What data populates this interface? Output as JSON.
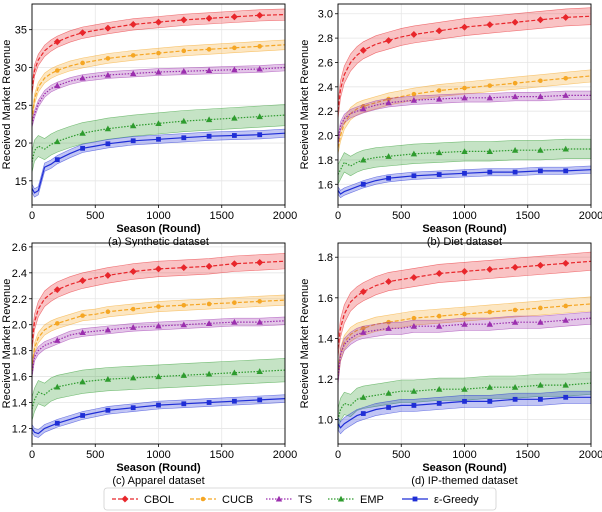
{
  "chart_data": [
    {
      "type": "line",
      "caption": "(a) Synthetic dataset",
      "xlabel": "Season (Round)",
      "ylabel": "Received Market Revenue",
      "xlim": [
        0,
        2000
      ],
      "ylim": [
        11.8,
        38.4
      ],
      "xticks": [
        0,
        500,
        1000,
        1500,
        2000
      ],
      "yticks": [
        15,
        20,
        25,
        30,
        35
      ],
      "x": [
        0,
        20,
        50,
        100,
        150,
        200,
        300,
        400,
        500,
        600,
        800,
        1000,
        1200,
        1400,
        1600,
        1800,
        2000
      ],
      "series": [
        {
          "name": "CBOL",
          "values": [
            27.0,
            29.6,
            31.0,
            32.2,
            32.9,
            33.4,
            34.1,
            34.6,
            34.9,
            35.2,
            35.7,
            36.0,
            36.3,
            36.5,
            36.7,
            36.9,
            37.0
          ],
          "band": 0.75
        },
        {
          "name": "CUCB",
          "values": [
            23.0,
            25.8,
            27.4,
            28.6,
            29.2,
            29.6,
            30.2,
            30.6,
            30.9,
            31.2,
            31.6,
            31.9,
            32.2,
            32.4,
            32.6,
            32.8,
            33.0
          ],
          "band": 0.65
        },
        {
          "name": "TS",
          "values": [
            22.5,
            23.8,
            25.2,
            26.5,
            27.2,
            27.6,
            28.2,
            28.6,
            28.8,
            29.0,
            29.2,
            29.4,
            29.5,
            29.6,
            29.7,
            29.8,
            30.0
          ],
          "band": 0.45
        },
        {
          "name": "EMP",
          "values": [
            17.5,
            19.0,
            19.6,
            19.2,
            19.8,
            20.2,
            20.8,
            21.3,
            21.6,
            21.9,
            22.3,
            22.6,
            22.9,
            23.1,
            23.3,
            23.5,
            23.7
          ],
          "band": 1.4
        },
        {
          "name": "ε-Greedy",
          "values": [
            14.0,
            13.4,
            13.7,
            16.8,
            17.2,
            17.8,
            18.6,
            19.3,
            19.6,
            19.9,
            20.3,
            20.5,
            20.7,
            20.9,
            21.0,
            21.1,
            21.3
          ],
          "band": 0.55
        }
      ]
    },
    {
      "type": "line",
      "caption": "(b) Diet dataset",
      "xlabel": "Season (Round)",
      "ylabel": "Received Market Revenue",
      "xlim": [
        0,
        2000
      ],
      "ylim": [
        1.43,
        3.08
      ],
      "xticks": [
        0,
        500,
        1000,
        1500,
        2000
      ],
      "yticks": [
        1.6,
        1.8,
        2.0,
        2.2,
        2.4,
        2.6,
        2.8,
        3.0
      ],
      "x": [
        0,
        20,
        50,
        100,
        150,
        200,
        300,
        400,
        500,
        600,
        800,
        1000,
        1200,
        1400,
        1600,
        1800,
        2000
      ],
      "series": [
        {
          "name": "CBOL",
          "values": [
            2.2,
            2.38,
            2.5,
            2.6,
            2.66,
            2.7,
            2.75,
            2.78,
            2.81,
            2.83,
            2.86,
            2.89,
            2.91,
            2.93,
            2.95,
            2.97,
            2.98
          ],
          "band": 0.07
        },
        {
          "name": "CUCB",
          "values": [
            1.9,
            2.0,
            2.1,
            2.18,
            2.22,
            2.24,
            2.27,
            2.3,
            2.32,
            2.34,
            2.37,
            2.39,
            2.41,
            2.43,
            2.45,
            2.47,
            2.49
          ],
          "band": 0.05
        },
        {
          "name": "TS",
          "values": [
            1.95,
            2.08,
            2.14,
            2.18,
            2.2,
            2.22,
            2.25,
            2.27,
            2.28,
            2.29,
            2.3,
            2.31,
            2.31,
            2.32,
            2.32,
            2.33,
            2.33
          ],
          "band": 0.035
        },
        {
          "name": "EMP",
          "values": [
            1.68,
            1.72,
            1.78,
            1.75,
            1.78,
            1.8,
            1.82,
            1.83,
            1.84,
            1.85,
            1.86,
            1.87,
            1.87,
            1.88,
            1.88,
            1.89,
            1.89
          ],
          "band": 0.08
        },
        {
          "name": "ε-Greedy",
          "values": [
            1.55,
            1.52,
            1.54,
            1.56,
            1.58,
            1.6,
            1.63,
            1.65,
            1.66,
            1.67,
            1.68,
            1.69,
            1.7,
            1.7,
            1.71,
            1.71,
            1.72
          ],
          "band": 0.03
        }
      ]
    },
    {
      "type": "line",
      "caption": "(c) Apparel dataset",
      "xlabel": "Season (Round)",
      "ylabel": "Received Market Revenue",
      "xlim": [
        0,
        2000
      ],
      "ylim": [
        1.08,
        2.63
      ],
      "xticks": [
        0,
        500,
        1000,
        1500,
        2000
      ],
      "yticks": [
        1.2,
        1.4,
        1.6,
        1.8,
        2.0,
        2.2,
        2.4,
        2.6
      ],
      "x": [
        0,
        20,
        50,
        100,
        150,
        200,
        300,
        400,
        500,
        600,
        800,
        1000,
        1200,
        1400,
        1600,
        1800,
        2000
      ],
      "series": [
        {
          "name": "CBOL",
          "values": [
            1.85,
            2.02,
            2.12,
            2.2,
            2.24,
            2.27,
            2.31,
            2.34,
            2.36,
            2.38,
            2.41,
            2.43,
            2.44,
            2.45,
            2.47,
            2.48,
            2.49
          ],
          "band": 0.06
        },
        {
          "name": "CUCB",
          "values": [
            1.65,
            1.82,
            1.9,
            1.96,
            1.99,
            2.01,
            2.04,
            2.07,
            2.08,
            2.1,
            2.12,
            2.14,
            2.15,
            2.16,
            2.17,
            2.18,
            2.19
          ],
          "band": 0.04
        },
        {
          "name": "TS",
          "values": [
            1.62,
            1.75,
            1.8,
            1.84,
            1.86,
            1.88,
            1.92,
            1.94,
            1.95,
            1.96,
            1.98,
            1.99,
            2.0,
            2.01,
            2.02,
            2.02,
            2.03
          ],
          "band": 0.03
        },
        {
          "name": "EMP",
          "values": [
            1.35,
            1.42,
            1.48,
            1.46,
            1.5,
            1.52,
            1.54,
            1.56,
            1.57,
            1.58,
            1.59,
            1.6,
            1.61,
            1.62,
            1.63,
            1.64,
            1.65
          ],
          "band": 0.09
        },
        {
          "name": "ε-Greedy",
          "values": [
            1.2,
            1.17,
            1.16,
            1.2,
            1.22,
            1.24,
            1.27,
            1.3,
            1.32,
            1.34,
            1.36,
            1.38,
            1.39,
            1.4,
            1.41,
            1.42,
            1.43
          ],
          "band": 0.03
        }
      ]
    },
    {
      "type": "line",
      "caption": "(d) IP-themed dataset",
      "xlabel": "Season (Round)",
      "ylabel": "Received Market Revenue",
      "xlim": [
        0,
        2000
      ],
      "ylim": [
        0.88,
        1.87
      ],
      "xticks": [
        0,
        500,
        1000,
        1500,
        2000
      ],
      "yticks": [
        1.0,
        1.2,
        1.4,
        1.6,
        1.8
      ],
      "x": [
        0,
        20,
        50,
        100,
        150,
        200,
        300,
        400,
        500,
        600,
        800,
        1000,
        1200,
        1400,
        1600,
        1800,
        2000
      ],
      "series": [
        {
          "name": "CBOL",
          "values": [
            1.35,
            1.45,
            1.52,
            1.58,
            1.61,
            1.63,
            1.66,
            1.68,
            1.69,
            1.7,
            1.72,
            1.73,
            1.74,
            1.75,
            1.76,
            1.77,
            1.78
          ],
          "band": 0.045
        },
        {
          "name": "CUCB",
          "values": [
            1.22,
            1.32,
            1.38,
            1.42,
            1.44,
            1.45,
            1.47,
            1.48,
            1.49,
            1.5,
            1.51,
            1.52,
            1.53,
            1.54,
            1.55,
            1.56,
            1.57
          ],
          "band": 0.035
        },
        {
          "name": "TS",
          "values": [
            1.2,
            1.32,
            1.37,
            1.4,
            1.42,
            1.43,
            1.44,
            1.45,
            1.45,
            1.46,
            1.46,
            1.47,
            1.47,
            1.48,
            1.48,
            1.49,
            1.5
          ],
          "band": 0.03
        },
        {
          "name": "EMP",
          "values": [
            1.0,
            1.05,
            1.08,
            1.07,
            1.1,
            1.11,
            1.12,
            1.13,
            1.14,
            1.14,
            1.15,
            1.15,
            1.16,
            1.16,
            1.17,
            1.17,
            1.18
          ],
          "band": 0.055
        },
        {
          "name": "ε-Greedy",
          "values": [
            0.98,
            0.96,
            0.98,
            1.0,
            1.02,
            1.03,
            1.05,
            1.06,
            1.07,
            1.07,
            1.08,
            1.09,
            1.09,
            1.1,
            1.1,
            1.11,
            1.11
          ],
          "band": 0.03
        }
      ]
    }
  ],
  "legend": [
    {
      "name": "CBOL",
      "color": "#e8262b",
      "marker": "diamond",
      "dash": "dashed"
    },
    {
      "name": "CUCB",
      "color": "#f5a623",
      "marker": "circle",
      "dash": "dashed"
    },
    {
      "name": "TS",
      "color": "#9b2fae",
      "marker": "triangle",
      "dash": "dotted"
    },
    {
      "name": "EMP",
      "color": "#2e9b2e",
      "marker": "triangle",
      "dash": "dotted"
    },
    {
      "name": "ε-Greedy",
      "color": "#1f2ed6",
      "marker": "square",
      "dash": "solid"
    }
  ],
  "colors": {
    "CBOL": "#e8262b",
    "CUCB": "#f5a623",
    "TS": "#9b2fae",
    "EMP": "#2e9b2e",
    "ε-Greedy": "#1f2ed6"
  }
}
